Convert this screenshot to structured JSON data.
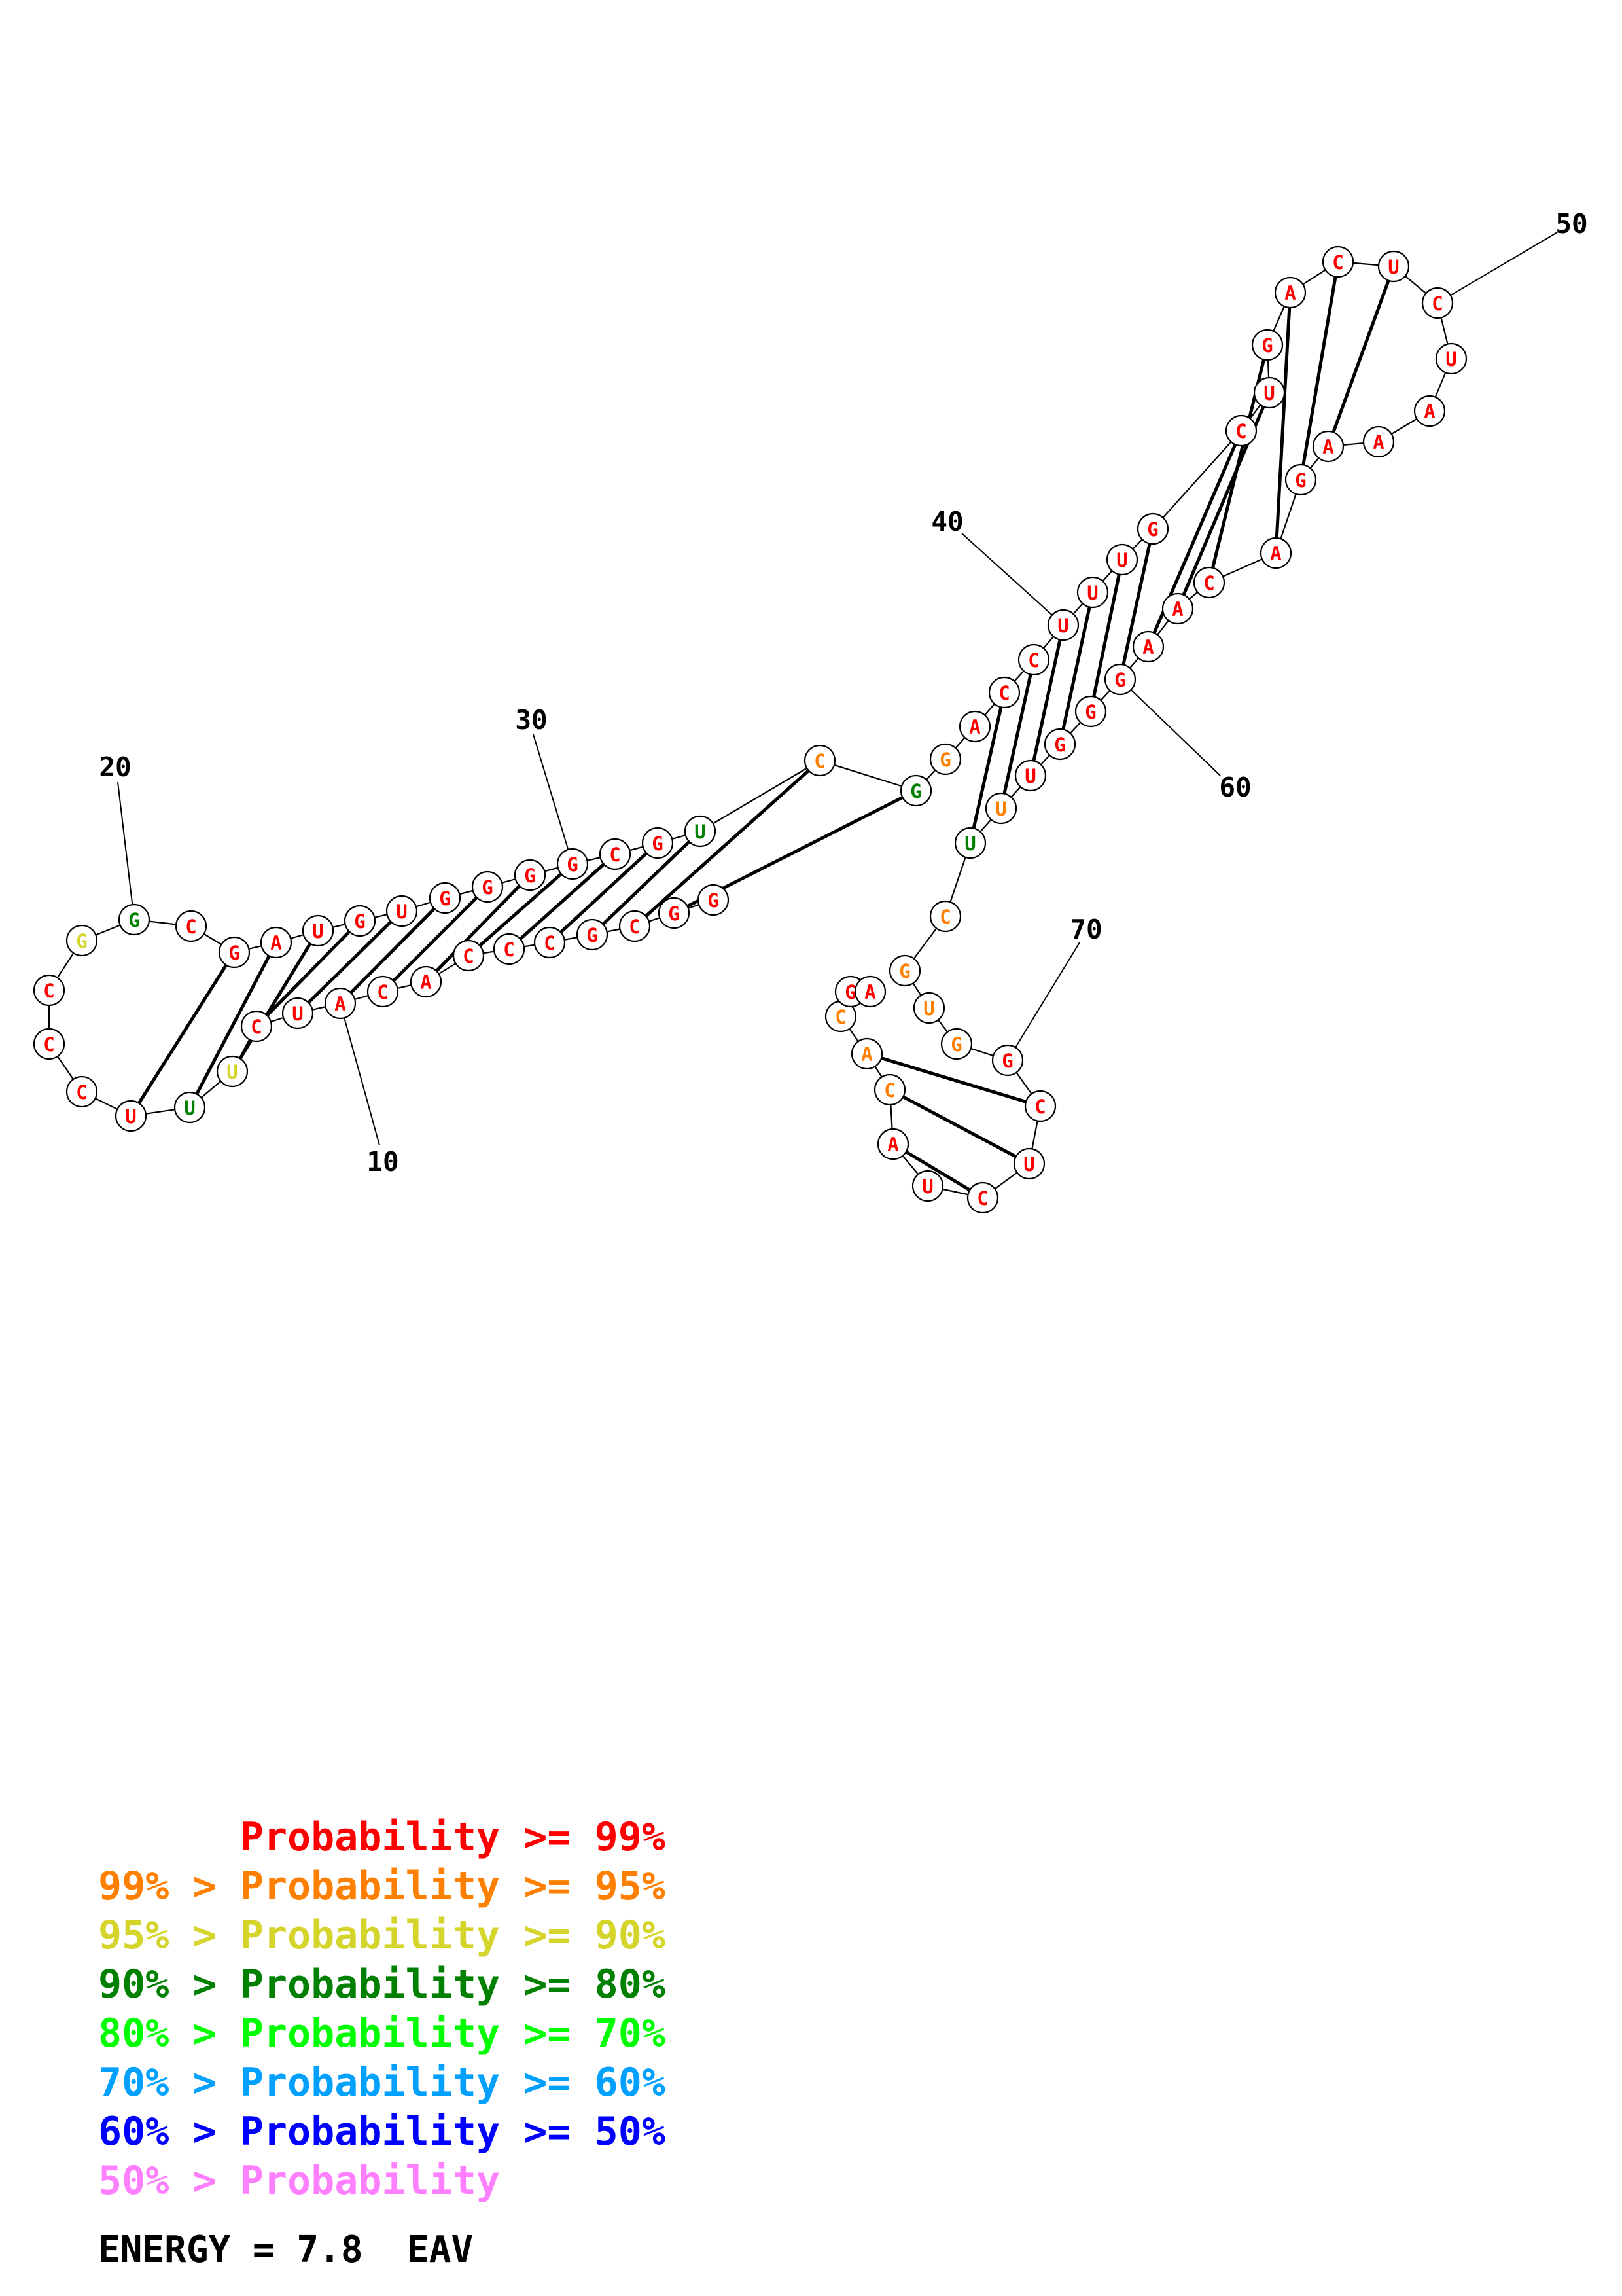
{
  "colors": {
    "p99": "#ff0000",
    "p95": "#ff8000",
    "p90": "#d4d42a",
    "p80": "#008000",
    "p70": "#00ff00",
    "p60": "#00a0ff",
    "p50": "#0000ff",
    "plow": "#ff80ff"
  },
  "nucleotides": [
    {
      "n": 1,
      "base": "G",
      "p": "p99"
    },
    {
      "n": 2,
      "base": "G",
      "p": "p99"
    },
    {
      "n": 3,
      "base": "C",
      "p": "p99"
    },
    {
      "n": 4,
      "base": "G",
      "p": "p99"
    },
    {
      "n": 5,
      "base": "C",
      "p": "p99"
    },
    {
      "n": 6,
      "base": "C",
      "p": "p99"
    },
    {
      "n": 7,
      "base": "C",
      "p": "p99"
    },
    {
      "n": 8,
      "base": "A",
      "p": "p99"
    },
    {
      "n": 9,
      "base": "C",
      "p": "p99"
    },
    {
      "n": 10,
      "base": "A",
      "p": "p99"
    },
    {
      "n": 11,
      "base": "U",
      "p": "p99"
    },
    {
      "n": 12,
      "base": "C",
      "p": "p99"
    },
    {
      "n": 13,
      "base": "U",
      "p": "p90"
    },
    {
      "n": 14,
      "base": "U",
      "p": "p80"
    },
    {
      "n": 15,
      "base": "U",
      "p": "p99"
    },
    {
      "n": 16,
      "base": "C",
      "p": "p99"
    },
    {
      "n": 17,
      "base": "C",
      "p": "p99"
    },
    {
      "n": 18,
      "base": "C",
      "p": "p99"
    },
    {
      "n": 19,
      "base": "G",
      "p": "p90"
    },
    {
      "n": 20,
      "base": "G",
      "p": "p80"
    },
    {
      "n": 21,
      "base": "C",
      "p": "p99"
    },
    {
      "n": 22,
      "base": "G",
      "p": "p99"
    },
    {
      "n": 23,
      "base": "A",
      "p": "p99"
    },
    {
      "n": 24,
      "base": "U",
      "p": "p99"
    },
    {
      "n": 25,
      "base": "G",
      "p": "p99"
    },
    {
      "n": 26,
      "base": "U",
      "p": "p99"
    },
    {
      "n": 27,
      "base": "G",
      "p": "p99"
    },
    {
      "n": 28,
      "base": "G",
      "p": "p99"
    },
    {
      "n": 29,
      "base": "G",
      "p": "p99"
    },
    {
      "n": 30,
      "base": "G",
      "p": "p99"
    },
    {
      "n": 31,
      "base": "C",
      "p": "p99"
    },
    {
      "n": 32,
      "base": "G",
      "p": "p99"
    },
    {
      "n": 33,
      "base": "U",
      "p": "p80"
    },
    {
      "n": 34,
      "base": "C",
      "p": "p95"
    },
    {
      "n": 35,
      "base": "G",
      "p": "p80"
    },
    {
      "n": 36,
      "base": "G",
      "p": "p95"
    },
    {
      "n": 37,
      "base": "A",
      "p": "p99"
    },
    {
      "n": 38,
      "base": "C",
      "p": "p99"
    },
    {
      "n": 39,
      "base": "C",
      "p": "p99"
    },
    {
      "n": 40,
      "base": "U",
      "p": "p99"
    },
    {
      "n": 41,
      "base": "U",
      "p": "p99"
    },
    {
      "n": 42,
      "base": "U",
      "p": "p99"
    },
    {
      "n": 43,
      "base": "G",
      "p": "p99"
    },
    {
      "n": 44,
      "base": "C",
      "p": "p99"
    },
    {
      "n": 45,
      "base": "U",
      "p": "p99"
    },
    {
      "n": 46,
      "base": "G",
      "p": "p99"
    },
    {
      "n": 47,
      "base": "A",
      "p": "p99"
    },
    {
      "n": 48,
      "base": "C",
      "p": "p99"
    },
    {
      "n": 49,
      "base": "U",
      "p": "p99"
    },
    {
      "n": 50,
      "base": "C",
      "p": "p99"
    },
    {
      "n": 51,
      "base": "U",
      "p": "p99"
    },
    {
      "n": 52,
      "base": "A",
      "p": "p99"
    },
    {
      "n": 53,
      "base": "A",
      "p": "p99"
    },
    {
      "n": 54,
      "base": "A",
      "p": "p99"
    },
    {
      "n": 55,
      "base": "G",
      "p": "p99"
    },
    {
      "n": 56,
      "base": "A",
      "p": "p99"
    },
    {
      "n": 57,
      "base": "C",
      "p": "p99"
    },
    {
      "n": 58,
      "base": "A",
      "p": "p99"
    },
    {
      "n": 59,
      "base": "A",
      "p": "p99"
    },
    {
      "n": 60,
      "base": "G",
      "p": "p99"
    },
    {
      "n": 61,
      "base": "G",
      "p": "p99"
    },
    {
      "n": 62,
      "base": "G",
      "p": "p99"
    },
    {
      "n": 63,
      "base": "U",
      "p": "p99"
    },
    {
      "n": 64,
      "base": "U",
      "p": "p95"
    },
    {
      "n": 65,
      "base": "U",
      "p": "p80"
    },
    {
      "n": 66,
      "base": "C",
      "p": "p95"
    },
    {
      "n": 67,
      "base": "G",
      "p": "p95"
    },
    {
      "n": 68,
      "base": "U",
      "p": "p95"
    },
    {
      "n": 69,
      "base": "G",
      "p": "p95"
    },
    {
      "n": 70,
      "base": "G",
      "p": "p99"
    },
    {
      "n": 71,
      "base": "C",
      "p": "p99"
    },
    {
      "n": 72,
      "base": "U",
      "p": "p99"
    },
    {
      "n": 73,
      "base": "C",
      "p": "p99"
    },
    {
      "n": 74,
      "base": "U",
      "p": "p99"
    },
    {
      "n": 75,
      "base": "A",
      "p": "p99"
    },
    {
      "n": 76,
      "base": "C",
      "p": "p95"
    },
    {
      "n": 77,
      "base": "A",
      "p": "p95"
    },
    {
      "n": 78,
      "base": "C",
      "p": "p95"
    },
    {
      "n": 79,
      "base": "G",
      "p": "p99"
    },
    {
      "n": 80,
      "base": "A",
      "p": "p99"
    }
  ],
  "pairs": [
    [
      2,
      35
    ],
    [
      3,
      34
    ],
    [
      4,
      33
    ],
    [
      5,
      32
    ],
    [
      6,
      31
    ],
    [
      7,
      30
    ],
    [
      8,
      29
    ],
    [
      9,
      28
    ],
    [
      10,
      27
    ],
    [
      11,
      26
    ],
    [
      12,
      25
    ],
    [
      13,
      24
    ],
    [
      14,
      23
    ],
    [
      15,
      22
    ],
    [
      38,
      65
    ],
    [
      39,
      64
    ],
    [
      40,
      63
    ],
    [
      41,
      62
    ],
    [
      42,
      61
    ],
    [
      43,
      60
    ],
    [
      44,
      59
    ],
    [
      45,
      58
    ],
    [
      46,
      57
    ],
    [
      47,
      56
    ],
    [
      48,
      55
    ],
    [
      49,
      54
    ],
    [
      71,
      77
    ],
    [
      72,
      76
    ],
    [
      73,
      75
    ]
  ],
  "position_labels": [
    {
      "text": "10",
      "n": 10
    },
    {
      "text": "20",
      "n": 20
    },
    {
      "text": "30",
      "n": 30
    },
    {
      "text": "40",
      "n": 40
    },
    {
      "text": "50",
      "n": 50
    },
    {
      "text": "60",
      "n": 60
    },
    {
      "text": "70",
      "n": 70
    }
  ],
  "legend": [
    {
      "prefix": "    ",
      "label": "Probability >= 99%",
      "p": "p99"
    },
    {
      "prefix": "99% > ",
      "label": "Probability >= 95%",
      "p": "p95"
    },
    {
      "prefix": "95% > ",
      "label": "Probability >= 90%",
      "p": "p90"
    },
    {
      "prefix": "90% > ",
      "label": "Probability >= 80%",
      "p": "p80"
    },
    {
      "prefix": "80% > ",
      "label": "Probability >= 70%",
      "p": "p70"
    },
    {
      "prefix": "70% > ",
      "label": "Probability >= 60%",
      "p": "p60"
    },
    {
      "prefix": "60% > ",
      "label": "Probability >= 50%",
      "p": "p50"
    },
    {
      "prefix": "50% > ",
      "label": "Probability",
      "p": "plow"
    }
  ],
  "energy_text": "ENERGY = 7.8  EAV"
}
